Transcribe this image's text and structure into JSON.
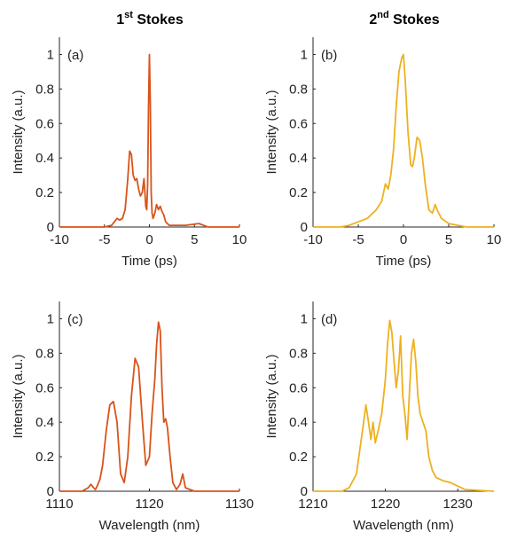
{
  "column_titles": [
    {
      "base": "1",
      "sup": "st",
      "rest": " Stokes"
    },
    {
      "base": "2",
      "sup": "nd",
      "rest": " Stokes"
    }
  ],
  "chart_data": [
    {
      "type": "line",
      "panel_label": "(a)",
      "xlabel": "Time (ps)",
      "ylabel": "Intensity (a.u.)",
      "xlim": [
        -10,
        10
      ],
      "ylim": [
        0,
        1.1
      ],
      "xticks": [
        "-10",
        "-5",
        "0",
        "5",
        "10"
      ],
      "yticks": [
        "0",
        "0.2",
        "0.4",
        "0.6",
        "0.8",
        "1"
      ],
      "color": "#d95319",
      "grid": false,
      "series": [
        {
          "x": [
            -10,
            -5,
            -4.2,
            -3.9,
            -3.6,
            -3.3,
            -3.0,
            -2.7,
            -2.4,
            -2.2,
            -2.0,
            -1.8,
            -1.6,
            -1.4,
            -1.2,
            -1.0,
            -0.8,
            -0.6,
            -0.4,
            -0.3,
            -0.2,
            -0.1,
            0,
            0.1,
            0.2,
            0.3,
            0.4,
            0.6,
            0.8,
            1.0,
            1.2,
            1.4,
            1.6,
            1.8,
            2.2,
            3.0,
            4.0,
            5.5,
            6.5,
            10
          ],
          "y": [
            0,
            0,
            0.01,
            0.03,
            0.05,
            0.04,
            0.05,
            0.1,
            0.28,
            0.44,
            0.42,
            0.3,
            0.27,
            0.28,
            0.22,
            0.18,
            0.2,
            0.28,
            0.12,
            0.1,
            0.25,
            0.7,
            1.0,
            0.72,
            0.2,
            0.08,
            0.05,
            0.08,
            0.13,
            0.1,
            0.12,
            0.09,
            0.07,
            0.03,
            0.01,
            0.01,
            0.01,
            0.02,
            0,
            0
          ]
        }
      ]
    },
    {
      "type": "line",
      "panel_label": "(b)",
      "xlabel": "Time (ps)",
      "ylabel": "Intensity (a.u.)",
      "xlim": [
        -10,
        10
      ],
      "ylim": [
        0,
        1.1
      ],
      "xticks": [
        "-10",
        "-5",
        "0",
        "5",
        "10"
      ],
      "yticks": [
        "0",
        "0.2",
        "0.4",
        "0.6",
        "0.8",
        "1"
      ],
      "color": "#edb120",
      "grid": false,
      "series": [
        {
          "x": [
            -10,
            -7,
            -6,
            -5,
            -4,
            -3,
            -2.4,
            -2.0,
            -1.7,
            -1.4,
            -1.1,
            -0.8,
            -0.5,
            -0.2,
            0,
            0.2,
            0.5,
            0.8,
            1.0,
            1.2,
            1.5,
            1.8,
            2.1,
            2.4,
            2.8,
            3.2,
            3.5,
            3.8,
            4.2,
            5.0,
            6.0,
            7.0,
            10
          ],
          "y": [
            0,
            0,
            0.01,
            0.03,
            0.05,
            0.1,
            0.15,
            0.25,
            0.22,
            0.3,
            0.45,
            0.7,
            0.9,
            0.98,
            1.0,
            0.85,
            0.55,
            0.36,
            0.35,
            0.4,
            0.52,
            0.5,
            0.4,
            0.25,
            0.1,
            0.08,
            0.13,
            0.09,
            0.05,
            0.02,
            0.01,
            0,
            0
          ]
        }
      ]
    },
    {
      "type": "line",
      "panel_label": "(c)",
      "xlabel": "Wavelength (nm)",
      "ylabel": "Intensity (a.u.)",
      "xlim": [
        1110,
        1130
      ],
      "ylim": [
        0,
        1.1
      ],
      "xticks": [
        "1110",
        "1120",
        "1130"
      ],
      "yticks": [
        "0",
        "0.2",
        "0.4",
        "0.6",
        "0.8",
        "1"
      ],
      "color": "#d95319",
      "grid": false,
      "series": [
        {
          "x": [
            1110,
            1112.5,
            1113.2,
            1113.5,
            1113.8,
            1114.0,
            1114.2,
            1114.5,
            1114.8,
            1115.2,
            1115.6,
            1116.0,
            1116.4,
            1116.8,
            1117.2,
            1117.6,
            1118.0,
            1118.4,
            1118.8,
            1119.2,
            1119.6,
            1120.0,
            1120.3,
            1120.6,
            1120.8,
            1121.0,
            1121.2,
            1121.4,
            1121.6,
            1121.8,
            1122.0,
            1122.3,
            1122.6,
            1123.0,
            1123.4,
            1123.7,
            1124.0,
            1125.0,
            1130
          ],
          "y": [
            0,
            0,
            0.02,
            0.04,
            0.02,
            0.01,
            0.03,
            0.07,
            0.15,
            0.35,
            0.5,
            0.52,
            0.4,
            0.1,
            0.05,
            0.2,
            0.55,
            0.77,
            0.72,
            0.42,
            0.15,
            0.2,
            0.45,
            0.65,
            0.85,
            0.98,
            0.93,
            0.6,
            0.4,
            0.42,
            0.37,
            0.2,
            0.05,
            0.01,
            0.04,
            0.1,
            0.02,
            0,
            0
          ]
        }
      ]
    },
    {
      "type": "line",
      "panel_label": "(d)",
      "xlabel": "Wavelength (nm)",
      "ylabel": "Intensity (a.u.)",
      "xlim": [
        1210,
        1235
      ],
      "ylim": [
        0,
        1.1
      ],
      "xticks": [
        "1210",
        "1220",
        "1230"
      ],
      "yticks": [
        "0",
        "0.2",
        "0.4",
        "0.6",
        "0.8",
        "1"
      ],
      "color": "#edb120",
      "grid": false,
      "series": [
        {
          "x": [
            1210,
            1214,
            1215,
            1216,
            1216.5,
            1217.0,
            1217.3,
            1217.6,
            1218.0,
            1218.3,
            1218.6,
            1219.0,
            1219.5,
            1220.0,
            1220.3,
            1220.6,
            1220.9,
            1221.2,
            1221.5,
            1221.8,
            1222.1,
            1222.4,
            1222.7,
            1223.0,
            1223.3,
            1223.6,
            1223.9,
            1224.2,
            1224.5,
            1224.8,
            1225.2,
            1225.6,
            1226.0,
            1226.5,
            1227.0,
            1228.0,
            1229.0,
            1230.0,
            1231.0,
            1235
          ],
          "y": [
            0,
            0,
            0.02,
            0.1,
            0.25,
            0.4,
            0.5,
            0.42,
            0.3,
            0.4,
            0.28,
            0.35,
            0.45,
            0.65,
            0.85,
            0.99,
            0.92,
            0.75,
            0.6,
            0.7,
            0.9,
            0.55,
            0.45,
            0.3,
            0.55,
            0.8,
            0.88,
            0.75,
            0.55,
            0.45,
            0.4,
            0.35,
            0.2,
            0.12,
            0.08,
            0.06,
            0.05,
            0.03,
            0.01,
            0
          ]
        }
      ]
    }
  ]
}
